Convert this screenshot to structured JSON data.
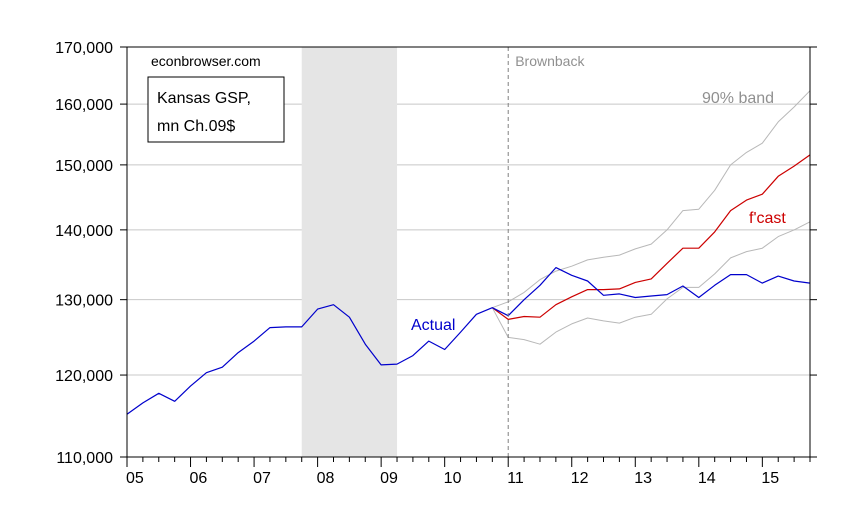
{
  "chart_data": {
    "type": "line",
    "y_scale": "log",
    "ylim": [
      110000,
      170000
    ],
    "y_ticks": [
      110000,
      120000,
      130000,
      140000,
      150000,
      160000,
      170000
    ],
    "y_tick_labels": [
      "110,000",
      "120,000",
      "130,000",
      "140,000",
      "150,000",
      "160,000",
      "170,000"
    ],
    "xlim": [
      2005.0,
      2015.75
    ],
    "x_ticks": [
      2005,
      2006,
      2007,
      2008,
      2009,
      2010,
      2011,
      2012,
      2013,
      2014,
      2015
    ],
    "x_tick_labels": [
      "05",
      "06",
      "07",
      "08",
      "09",
      "10",
      "11",
      "12",
      "13",
      "14",
      "15"
    ],
    "grid": true,
    "recession_shading": {
      "start": 2007.75,
      "end": 2009.25
    },
    "vertical_marker": {
      "x": 2011.0,
      "label": "Brownback"
    },
    "source_label": "econbrowser.com",
    "legend_box_lines": [
      "Kansas GSP,",
      "mn Ch.09$"
    ],
    "series": [
      {
        "name": "Actual",
        "color": "#0000cc",
        "x": [
          2005.0,
          2005.25,
          2005.5,
          2005.75,
          2006.0,
          2006.25,
          2006.5,
          2006.75,
          2007.0,
          2007.25,
          2007.5,
          2007.75,
          2008.0,
          2008.25,
          2008.5,
          2008.75,
          2009.0,
          2009.25,
          2009.5,
          2009.75,
          2010.0,
          2010.25,
          2010.5,
          2010.75,
          2011.0,
          2011.25,
          2011.5,
          2011.75,
          2012.0,
          2012.25,
          2012.5,
          2012.75,
          2013.0,
          2013.25,
          2013.5,
          2013.75,
          2014.0,
          2014.25,
          2014.5,
          2014.75,
          2015.0,
          2015.25,
          2015.5,
          2015.75
        ],
        "values": [
          115100,
          116500,
          117700,
          116700,
          118600,
          120300,
          121000,
          122900,
          124400,
          126200,
          126300,
          126300,
          128700,
          129300,
          127600,
          124000,
          121300,
          121400,
          122500,
          124400,
          123300,
          125600,
          128000,
          128900,
          127800,
          130000,
          132000,
          134500,
          133400,
          132600,
          130600,
          130800,
          130300,
          130500,
          130700,
          131900,
          130300,
          132000,
          133500,
          133500,
          132300,
          133300,
          132600,
          132300
        ]
      },
      {
        "name": "f'cast",
        "color": "#cc0000",
        "x": [
          2010.75,
          2011.0,
          2011.25,
          2011.5,
          2011.75,
          2012.0,
          2012.25,
          2012.5,
          2012.75,
          2013.0,
          2013.25,
          2013.5,
          2013.75,
          2014.0,
          2014.25,
          2014.5,
          2014.75,
          2015.0,
          2015.25,
          2015.5,
          2015.75
        ],
        "values": [
          128900,
          127300,
          127700,
          127600,
          129300,
          130400,
          131400,
          131400,
          131500,
          132400,
          132900,
          135100,
          137300,
          137300,
          139700,
          142900,
          144500,
          145400,
          148200,
          149800,
          151600
        ]
      },
      {
        "name": "90% band",
        "color": "#b8b8b8",
        "x": [
          2010.75,
          2011.0,
          2011.25,
          2011.5,
          2011.75,
          2012.0,
          2012.25,
          2012.5,
          2012.75,
          2013.0,
          2013.25,
          2013.5,
          2013.75,
          2014.0,
          2014.25,
          2014.5,
          2014.75,
          2015.0,
          2015.25,
          2015.5,
          2015.75
        ],
        "values": [
          128900,
          129700,
          131000,
          132800,
          134000,
          134700,
          135600,
          136000,
          136300,
          137200,
          137900,
          140000,
          142900,
          143100,
          146000,
          150000,
          152000,
          153500,
          157000,
          159500,
          162300
        ]
      },
      {
        "name": "90% band lower",
        "color": "#b8b8b8",
        "x": [
          2010.75,
          2011.0,
          2011.25,
          2011.5,
          2011.75,
          2012.0,
          2012.25,
          2012.5,
          2012.75,
          2013.0,
          2013.25,
          2013.5,
          2013.75,
          2014.0,
          2014.25,
          2014.5,
          2014.75,
          2015.0,
          2015.25,
          2015.5,
          2015.75
        ],
        "values": [
          128900,
          124900,
          124600,
          124000,
          125600,
          126700,
          127500,
          127100,
          126800,
          127600,
          128000,
          130100,
          131700,
          131700,
          133600,
          135900,
          136800,
          137300,
          139000,
          140000,
          141200
        ]
      }
    ],
    "labels": [
      {
        "text": "Actual",
        "color": "#0000cc"
      },
      {
        "text": "f'cast",
        "color": "#cc0000"
      },
      {
        "text": "90% band",
        "color": "#909090"
      }
    ]
  }
}
